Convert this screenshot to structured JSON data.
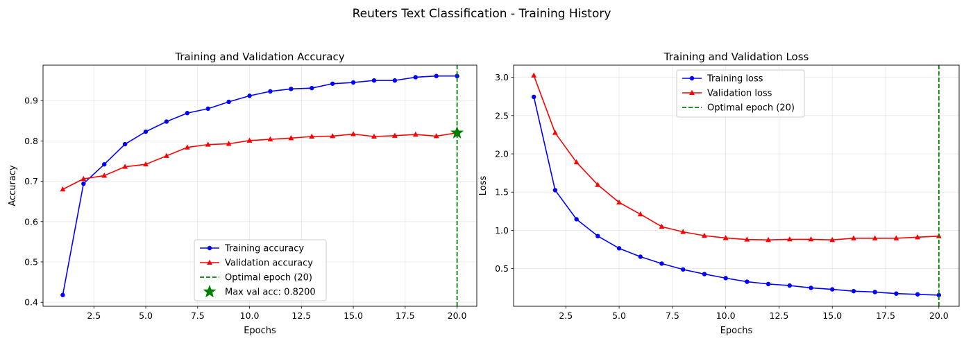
{
  "figure": {
    "suptitle": "Reuters Text Classification - Training History"
  },
  "chart_data": [
    {
      "type": "line",
      "title": "Training and Validation Accuracy",
      "xlabel": "Epochs",
      "ylabel": "Accuracy",
      "x": [
        1,
        2,
        3,
        4,
        5,
        6,
        7,
        8,
        9,
        10,
        11,
        12,
        13,
        14,
        15,
        16,
        17,
        18,
        19,
        20
      ],
      "xlim": [
        0.05,
        20.95
      ],
      "ylim": [
        0.39,
        0.988
      ],
      "xticks": [
        2.5,
        5.0,
        7.5,
        10.0,
        12.5,
        15.0,
        17.5,
        20.0
      ],
      "xtick_labels": [
        "2.5",
        "5.0",
        "7.5",
        "10.0",
        "12.5",
        "15.0",
        "17.5",
        "20.0"
      ],
      "yticks": [
        0.4,
        0.5,
        0.6,
        0.7,
        0.8,
        0.9
      ],
      "ytick_labels": [
        "0.4",
        "0.5",
        "0.6",
        "0.7",
        "0.8",
        "0.9"
      ],
      "grid": true,
      "legend_position": "lower-center",
      "series": [
        {
          "name": "Training accuracy",
          "color": "#0000ff",
          "marker": "circle",
          "values": [
            0.418,
            0.694,
            0.742,
            0.792,
            0.823,
            0.848,
            0.869,
            0.88,
            0.897,
            0.912,
            0.923,
            0.929,
            0.931,
            0.942,
            0.945,
            0.95,
            0.95,
            0.958,
            0.961,
            0.961
          ]
        },
        {
          "name": "Validation accuracy",
          "color": "#ff0000",
          "marker": "triangle",
          "values": [
            0.68,
            0.706,
            0.714,
            0.736,
            0.742,
            0.763,
            0.784,
            0.791,
            0.793,
            0.801,
            0.804,
            0.807,
            0.811,
            0.812,
            0.817,
            0.811,
            0.813,
            0.816,
            0.812,
            0.82
          ]
        }
      ],
      "vline": {
        "name": "Optimal epoch (20)",
        "x": 20,
        "color": "#008000",
        "style": "dashed"
      },
      "highlight": {
        "name": "Max val acc: 0.8200",
        "x": 20,
        "y": 0.82,
        "color": "#008000",
        "marker": "star"
      }
    },
    {
      "type": "line",
      "title": "Training and Validation Loss",
      "xlabel": "Epochs",
      "ylabel": "Loss",
      "x": [
        1,
        2,
        3,
        4,
        5,
        6,
        7,
        8,
        9,
        10,
        11,
        12,
        13,
        14,
        15,
        16,
        17,
        18,
        19,
        20
      ],
      "xlim": [
        0.05,
        20.95
      ],
      "ylim": [
        0.007,
        3.16
      ],
      "xticks": [
        2.5,
        5.0,
        7.5,
        10.0,
        12.5,
        15.0,
        17.5,
        20.0
      ],
      "xtick_labels": [
        "2.5",
        "5.0",
        "7.5",
        "10.0",
        "12.5",
        "15.0",
        "17.5",
        "20.0"
      ],
      "yticks": [
        0.5,
        1.0,
        1.5,
        2.0,
        2.5,
        3.0
      ],
      "ytick_labels": [
        "0.5",
        "1.0",
        "1.5",
        "2.0",
        "2.5",
        "3.0"
      ],
      "grid": true,
      "legend_position": "upper-center",
      "series": [
        {
          "name": "Training loss",
          "color": "#0000ff",
          "marker": "circle",
          "values": [
            2.745,
            1.525,
            1.145,
            0.925,
            0.765,
            0.655,
            0.565,
            0.488,
            0.428,
            0.375,
            0.328,
            0.298,
            0.278,
            0.248,
            0.228,
            0.205,
            0.193,
            0.173,
            0.163,
            0.153
          ]
        },
        {
          "name": "Validation loss",
          "color": "#ff0000",
          "marker": "triangle",
          "values": [
            3.025,
            2.275,
            1.89,
            1.595,
            1.365,
            1.21,
            1.048,
            0.98,
            0.93,
            0.9,
            0.88,
            0.875,
            0.882,
            0.882,
            0.875,
            0.897,
            0.897,
            0.897,
            0.91,
            0.924
          ]
        }
      ],
      "vline": {
        "name": "Optimal epoch (20)",
        "x": 20,
        "color": "#008000",
        "style": "dashed"
      }
    }
  ]
}
